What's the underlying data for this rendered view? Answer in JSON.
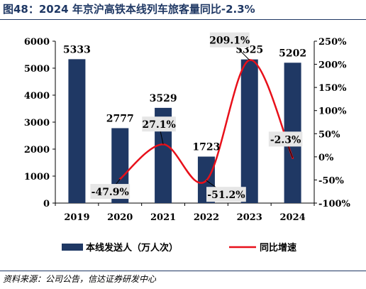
{
  "title": "图48：2024 年京沪高铁本线列车旅客量同比-2.3%",
  "source": "资料来源：公司公告，信达证券研发中心",
  "colors": {
    "bar": "#1f3864",
    "line": "#e8101a",
    "title": "#1f3864"
  },
  "chart_data": {
    "type": "bar",
    "categories": [
      "2019",
      "2020",
      "2021",
      "2022",
      "2023",
      "2024"
    ],
    "series": [
      {
        "name": "本线发送人（万人次）",
        "type": "bar",
        "axis": "left",
        "values": [
          5333,
          2777,
          3529,
          1723,
          5325,
          5202
        ]
      },
      {
        "name": "同比增速",
        "type": "line",
        "axis": "right",
        "values": [
          null,
          -47.9,
          27.1,
          -51.2,
          209.1,
          -2.3
        ]
      }
    ],
    "bar_labels": [
      "5333",
      "2777",
      "3529",
      "1723",
      "5325",
      "5202"
    ],
    "line_labels": [
      "",
      "-47.9%",
      "27.1%",
      "-51.2%",
      "209.1%",
      "-2.3%"
    ],
    "y_left": {
      "min": 0,
      "max": 6000,
      "ticks": [
        "0",
        "1000",
        "2000",
        "3000",
        "4000",
        "5000",
        "6000"
      ]
    },
    "y_right": {
      "min": -100,
      "max": 250,
      "ticks": [
        "-100%",
        "-50%",
        "0%",
        "50%",
        "100%",
        "150%",
        "200%",
        "250%"
      ]
    },
    "legend": [
      "本线发送人（万人次）",
      "同比增速"
    ],
    "legend_position": "bottom"
  }
}
